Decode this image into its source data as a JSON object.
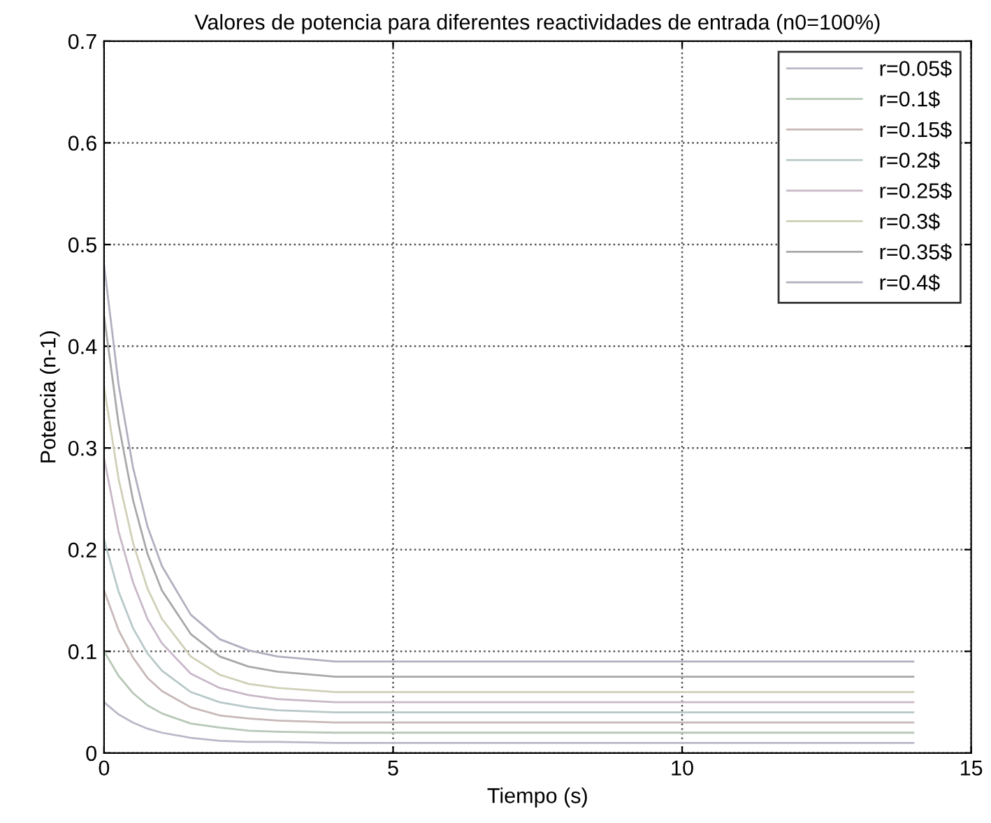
{
  "chart_data": {
    "type": "line",
    "title": "Valores de potencia para diferentes reactividades de entrada (n0=100%)",
    "xlabel": "Tiempo (s)",
    "ylabel": "Potencia (n-1)",
    "x": [
      0,
      0.25,
      0.5,
      0.75,
      1,
      1.5,
      2,
      2.5,
      3,
      4,
      7,
      10,
      14
    ],
    "series": [
      {
        "name": "r=0.05$",
        "color": "#b8b8c8",
        "values": [
          0.05,
          0.038,
          0.03,
          0.024,
          0.02,
          0.015,
          0.012,
          0.011,
          0.011,
          0.01,
          0.01,
          0.01,
          0.01
        ]
      },
      {
        "name": "r=0.1$",
        "color": "#b8c8b8",
        "values": [
          0.1,
          0.076,
          0.059,
          0.047,
          0.039,
          0.029,
          0.025,
          0.022,
          0.021,
          0.02,
          0.02,
          0.02,
          0.02
        ]
      },
      {
        "name": "r=0.15$",
        "color": "#c8b8b8",
        "values": [
          0.16,
          0.121,
          0.094,
          0.074,
          0.061,
          0.045,
          0.037,
          0.034,
          0.032,
          0.03,
          0.03,
          0.03,
          0.03
        ]
      },
      {
        "name": "r=0.2$",
        "color": "#b8c8c8",
        "values": [
          0.21,
          0.159,
          0.123,
          0.098,
          0.081,
          0.06,
          0.05,
          0.045,
          0.042,
          0.04,
          0.04,
          0.04,
          0.04
        ]
      },
      {
        "name": "r=0.25$",
        "color": "#c8b8c8",
        "values": [
          0.29,
          0.218,
          0.168,
          0.132,
          0.108,
          0.078,
          0.064,
          0.057,
          0.053,
          0.05,
          0.05,
          0.05,
          0.05
        ]
      },
      {
        "name": "r=0.3$",
        "color": "#d0d0b8",
        "values": [
          0.36,
          0.27,
          0.207,
          0.162,
          0.132,
          0.095,
          0.077,
          0.068,
          0.064,
          0.06,
          0.06,
          0.06,
          0.06
        ]
      },
      {
        "name": "r=0.35$",
        "color": "#a8a8a8",
        "values": [
          0.43,
          0.324,
          0.249,
          0.196,
          0.16,
          0.117,
          0.095,
          0.085,
          0.08,
          0.075,
          0.075,
          0.075,
          0.075
        ]
      },
      {
        "name": "r=0.4$",
        "color": "#b0b0c0",
        "values": [
          0.48,
          0.363,
          0.281,
          0.223,
          0.184,
          0.136,
          0.112,
          0.101,
          0.095,
          0.09,
          0.09,
          0.09,
          0.09
        ]
      }
    ],
    "xlim": [
      0,
      15
    ],
    "xticks": [
      0,
      5,
      10,
      15
    ],
    "ylim": [
      0,
      0.7
    ],
    "yticks": [
      0,
      0.1,
      0.2,
      0.3,
      0.4,
      0.5,
      0.6,
      0.7
    ],
    "grid": true,
    "legend": "top right",
    "line_style": "solid"
  }
}
